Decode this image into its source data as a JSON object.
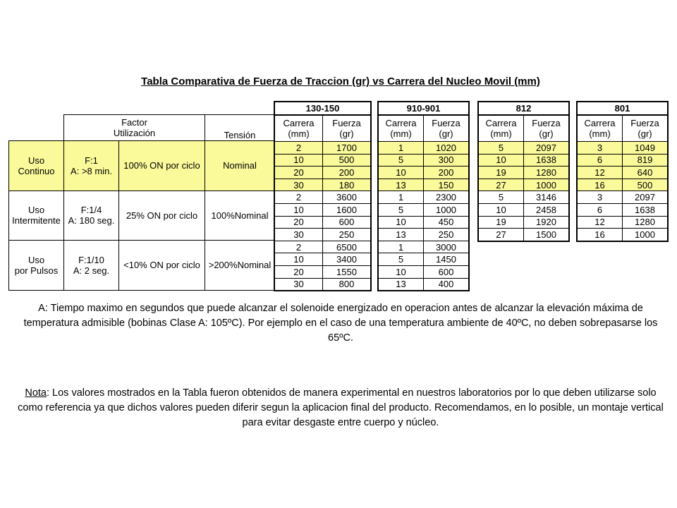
{
  "title": "Tabla Comparativa de Fuerza de Traccion (gr) vs Carrera del Nucleo Movil (mm)",
  "left_table": {
    "headers": {
      "factor_line1": "Factor",
      "factor_line2": "Utilización",
      "tension": "Tensión"
    },
    "rows": [
      {
        "uso1": "Uso",
        "uso2": "Continuo",
        "f1": "F:1",
        "f2": "A: >8 min.",
        "on": "100% ON por ciclo",
        "tension": "Nominal",
        "highlight": true
      },
      {
        "uso1": "Uso",
        "uso2": "Intermitente",
        "f1": "F:1/4",
        "f2": "A: 180 seg.",
        "on": "25% ON por ciclo",
        "tension": "100%Nominal",
        "highlight": false
      },
      {
        "uso1": "Uso",
        "uso2": "por Pulsos",
        "f1": "F:1/10",
        "f2": "A: 2 seg.",
        "on": "<10% ON por ciclo",
        "tension": ">200%Nominal",
        "highlight": false
      }
    ]
  },
  "col_headers": {
    "carrera1": "Carrera",
    "carrera2": "(mm)",
    "fuerza1": "Fuerza",
    "fuerza2": "(gr)"
  },
  "products": [
    {
      "name": "130-150",
      "rows": [
        [
          "2",
          "1700"
        ],
        [
          "10",
          "500"
        ],
        [
          "20",
          "200"
        ],
        [
          "30",
          "180"
        ],
        [
          "2",
          "3600"
        ],
        [
          "10",
          "1600"
        ],
        [
          "20",
          "600"
        ],
        [
          "30",
          "250"
        ],
        [
          "2",
          "6500"
        ],
        [
          "10",
          "3400"
        ],
        [
          "20",
          "1550"
        ],
        [
          "30",
          "800"
        ]
      ]
    },
    {
      "name": "910-901",
      "rows": [
        [
          "1",
          "1020"
        ],
        [
          "5",
          "300"
        ],
        [
          "10",
          "200"
        ],
        [
          "13",
          "150"
        ],
        [
          "1",
          "2300"
        ],
        [
          "5",
          "1000"
        ],
        [
          "10",
          "450"
        ],
        [
          "13",
          "250"
        ],
        [
          "1",
          "3000"
        ],
        [
          "5",
          "1450"
        ],
        [
          "10",
          "600"
        ],
        [
          "13",
          "400"
        ]
      ]
    },
    {
      "name": "812",
      "rows": [
        [
          "5",
          "2097"
        ],
        [
          "10",
          "1638"
        ],
        [
          "19",
          "1280"
        ],
        [
          "27",
          "1000"
        ],
        [
          "5",
          "3146"
        ],
        [
          "10",
          "2458"
        ],
        [
          "19",
          "1920"
        ],
        [
          "27",
          "1500"
        ]
      ]
    },
    {
      "name": "801",
      "rows": [
        [
          "3",
          "1049"
        ],
        [
          "6",
          "819"
        ],
        [
          "12",
          "640"
        ],
        [
          "16",
          "500"
        ],
        [
          "3",
          "2097"
        ],
        [
          "6",
          "1638"
        ],
        [
          "12",
          "1280"
        ],
        [
          "16",
          "1000"
        ]
      ]
    }
  ],
  "highlight_color": "#fafa9a",
  "footnote_a": "A: Tiempo maximo en segundos que puede alcanzar el solenoide energizado en operacion antes de alcanzar la elevación máxima de temperatura admisible (bobinas Clase A: 105ºC). Por ejemplo en el caso de una temperatura ambiente de 40ºC, no deben sobrepasarse los 65ºC.",
  "nota_label": "Nota",
  "nota_text": ": Los valores mostrados en la Tabla fueron obtenidos de manera experimental en nuestros laboratorios por lo que deben utilizarse solo como referencia ya que dichos valores pueden diferir segun la aplicacion final del producto. Recomendamos, en lo posible, un montaje vertical para evitar desgaste entre cuerpo y núcleo."
}
